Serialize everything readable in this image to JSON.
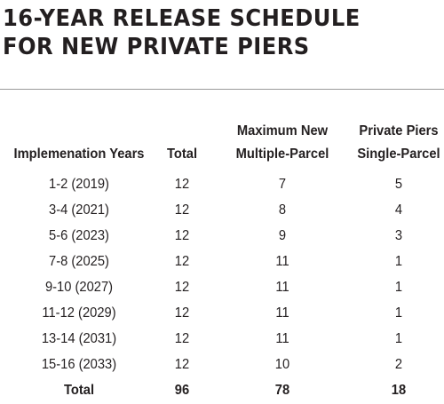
{
  "title": {
    "line1": "16-YEAR RELEASE SCHEDULE",
    "line2": "FOR NEW PRIVATE PIERS"
  },
  "table": {
    "group_header": {
      "multi_top": "Maximum New",
      "single_top": "Private Piers"
    },
    "columns": {
      "years": "Implemenation Years",
      "total": "Total",
      "multi": "Multiple-Parcel",
      "single": "Single-Parcel"
    },
    "rows": [
      {
        "years": "1-2 (2019)",
        "total": "12",
        "multi": "7",
        "single": "5"
      },
      {
        "years": "3-4 (2021)",
        "total": "12",
        "multi": "8",
        "single": "4"
      },
      {
        "years": "5-6 (2023)",
        "total": "12",
        "multi": "9",
        "single": "3"
      },
      {
        "years": "7-8 (2025)",
        "total": "12",
        "multi": "11",
        "single": "1"
      },
      {
        "years": "9-10 (2027)",
        "total": "12",
        "multi": "11",
        "single": "1"
      },
      {
        "years": "11-12 (2029)",
        "total": "12",
        "multi": "11",
        "single": "1"
      },
      {
        "years": "13-14 (2031)",
        "total": "12",
        "multi": "11",
        "single": "1"
      },
      {
        "years": "15-16 (2033)",
        "total": "12",
        "multi": "10",
        "single": "2"
      }
    ],
    "totals": {
      "label": "Total",
      "total": "96",
      "multi": "78",
      "single": "18"
    }
  }
}
